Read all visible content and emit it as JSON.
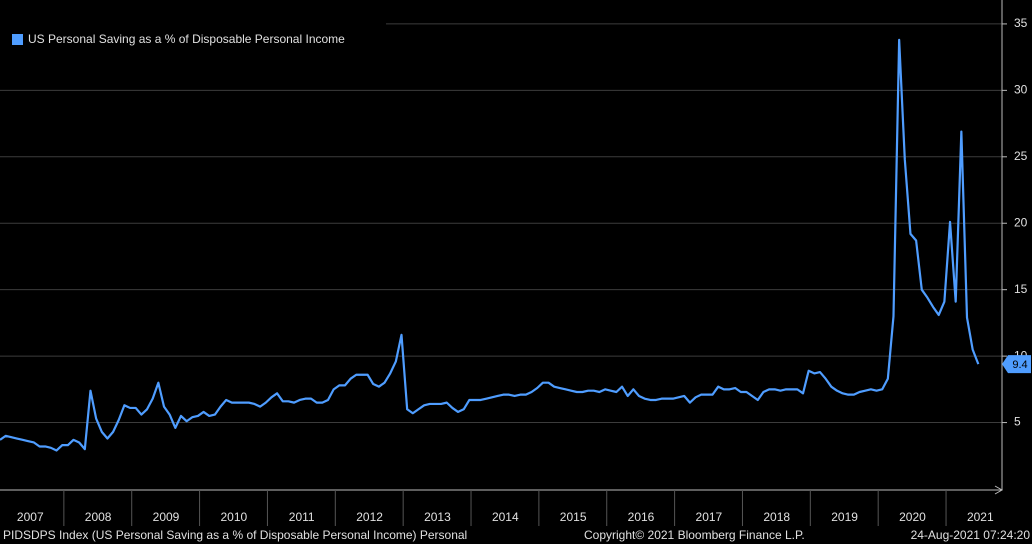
{
  "chart_data": {
    "type": "line",
    "categories": [
      null,
      null,
      null,
      null,
      null,
      "2007",
      null,
      null,
      null,
      null,
      null,
      null,
      null,
      null,
      null,
      null,
      null,
      "2008",
      null,
      null,
      null,
      null,
      null,
      null,
      null,
      null,
      null,
      null,
      null,
      "2009",
      null,
      null,
      null,
      null,
      null,
      null,
      null,
      null,
      null,
      null,
      null,
      "2010",
      null,
      null,
      null,
      null,
      null,
      null,
      null,
      null,
      null,
      null,
      null,
      "2011",
      null,
      null,
      null,
      null,
      null,
      null,
      null,
      null,
      null,
      null,
      null,
      "2012",
      null,
      null,
      null,
      null,
      null,
      null,
      null,
      null,
      null,
      null,
      null,
      "2013",
      null,
      null,
      null,
      null,
      null,
      null,
      null,
      null,
      null,
      null,
      null,
      "2014",
      null,
      null,
      null,
      null,
      null,
      null,
      null,
      null,
      null,
      null,
      null,
      "2015",
      null,
      null,
      null,
      null,
      null,
      null,
      null,
      null,
      null,
      null,
      null,
      "2016",
      null,
      null,
      null,
      null,
      null,
      null,
      null,
      null,
      null,
      null,
      null,
      "2017",
      null,
      null,
      null,
      null,
      null,
      null,
      null,
      null,
      null,
      null,
      null,
      "2018",
      null,
      null,
      null,
      null,
      null,
      null,
      null,
      null,
      null,
      null,
      null,
      "2019",
      null,
      null,
      null,
      null,
      null,
      null,
      null,
      null,
      null,
      null,
      null,
      "2020",
      null,
      null,
      null,
      null,
      null,
      null,
      null,
      null,
      null,
      null,
      null,
      "2021"
    ],
    "series": [
      {
        "name": "US Personal Saving as a % of Disposable Personal Income",
        "color": "#4f9dff",
        "values": [
          3.7,
          4.0,
          3.9,
          3.8,
          3.7,
          3.6,
          3.5,
          3.2,
          3.2,
          3.1,
          2.9,
          3.3,
          3.3,
          3.7,
          3.5,
          3.0,
          7.4,
          5.3,
          4.3,
          3.8,
          4.3,
          5.2,
          6.3,
          6.1,
          6.1,
          5.6,
          6.0,
          6.8,
          8.0,
          6.2,
          5.6,
          4.6,
          5.5,
          5.1,
          5.4,
          5.5,
          5.8,
          5.5,
          5.6,
          6.2,
          6.7,
          6.5,
          6.5,
          6.5,
          6.5,
          6.4,
          6.2,
          6.5,
          6.9,
          7.2,
          6.6,
          6.6,
          6.5,
          6.7,
          6.8,
          6.8,
          6.5,
          6.5,
          6.7,
          7.5,
          7.8,
          7.8,
          8.3,
          8.6,
          8.6,
          8.6,
          7.9,
          7.7,
          8.0,
          8.7,
          9.6,
          11.6,
          6.0,
          5.7,
          6.0,
          6.3,
          6.4,
          6.4,
          6.4,
          6.5,
          6.1,
          5.8,
          6.0,
          6.7,
          6.7,
          6.7,
          6.8,
          6.9,
          7.0,
          7.1,
          7.1,
          7.0,
          7.1,
          7.1,
          7.3,
          7.6,
          8.0,
          8.0,
          7.7,
          7.6,
          7.5,
          7.4,
          7.3,
          7.3,
          7.4,
          7.4,
          7.3,
          7.5,
          7.4,
          7.3,
          7.7,
          7.0,
          7.5,
          7.0,
          6.8,
          6.7,
          6.7,
          6.8,
          6.8,
          6.8,
          6.9,
          7.0,
          6.5,
          6.9,
          7.1,
          7.1,
          7.1,
          7.7,
          7.5,
          7.5,
          7.6,
          7.3,
          7.3,
          7.0,
          6.7,
          7.3,
          7.5,
          7.5,
          7.4,
          7.5,
          7.5,
          7.5,
          7.2,
          8.9,
          8.7,
          8.8,
          8.3,
          7.7,
          7.4,
          7.2,
          7.1,
          7.1,
          7.3,
          7.4,
          7.5,
          7.4,
          7.5,
          8.3,
          13.0,
          33.8,
          24.8,
          19.2,
          18.7,
          15.0,
          14.4,
          13.7,
          13.1,
          14.1,
          20.1,
          14.1,
          26.9,
          12.9,
          10.5,
          9.4
        ]
      }
    ],
    "ylim": [
      0,
      36.8
    ],
    "yticks": [
      5,
      10,
      15,
      20,
      25,
      30,
      35
    ],
    "grid": true,
    "legend": "top-left"
  },
  "footer": {
    "left": "PIDSDPS Index (US Personal Saving as a % of Disposable Personal Income) Personal",
    "center": "Copyright© 2021 Bloomberg Finance L.P.",
    "right": "24-Aug-2021 07:24:20"
  }
}
